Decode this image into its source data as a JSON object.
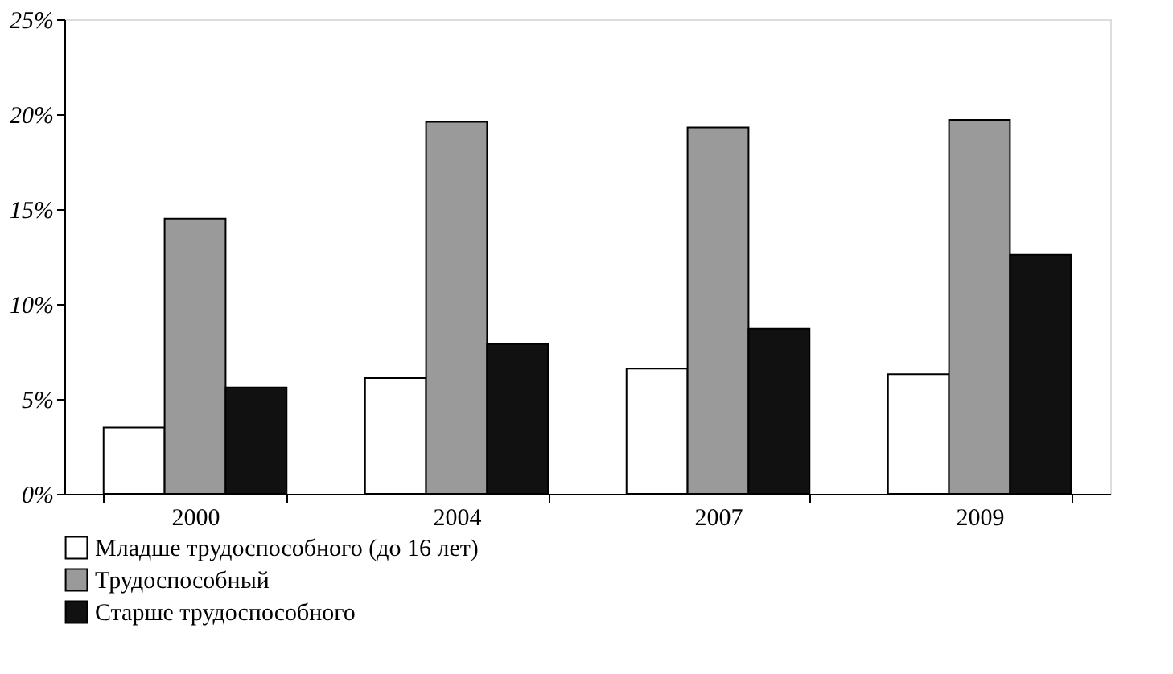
{
  "chart_data": {
    "type": "bar",
    "categories": [
      "2000",
      "2004",
      "2007",
      "2009"
    ],
    "series": [
      {
        "name": "Младше трудоспособного (до 16 лет)",
        "color": "#ffffff",
        "values": [
          3.5,
          6.1,
          6.6,
          6.3
        ]
      },
      {
        "name": "Трудоспособный",
        "color": "#9a9a9a",
        "values": [
          14.5,
          19.6,
          19.3,
          19.7
        ]
      },
      {
        "name": "Старше трудоспособного",
        "color": "#111111",
        "values": [
          5.6,
          7.9,
          8.7,
          12.6
        ]
      }
    ],
    "ylim": [
      0,
      25
    ],
    "yticks": [
      {
        "value": 0,
        "label": "0%"
      },
      {
        "value": 5,
        "label": "5%"
      },
      {
        "value": 10,
        "label": "10%"
      },
      {
        "value": 15,
        "label": "15%"
      },
      {
        "value": 20,
        "label": "20%"
      },
      {
        "value": 25,
        "label": "25%"
      }
    ],
    "grid": false,
    "legend": "bottom"
  }
}
